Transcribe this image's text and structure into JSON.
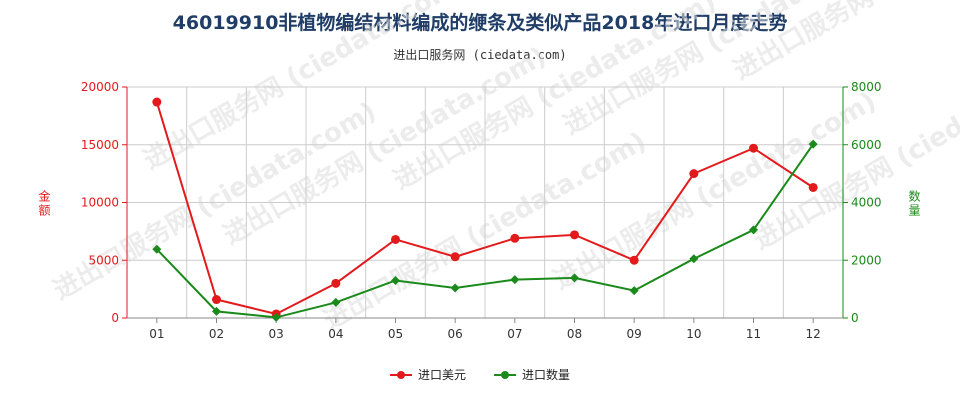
{
  "header": {
    "title": "46019910非植物编结材料编成的缏条及类似产品2018年进口月度走势",
    "subtitle": "进出口服务网 (ciedata.com)"
  },
  "watermark": "进出口服务网 (ciedata.com)",
  "colors": {
    "left_axis": "#e31a1c",
    "right_axis": "#1a8a1a",
    "grid": "#cccccc",
    "title": "#1f3d66"
  },
  "chart_data": {
    "type": "line",
    "title": "46019910非植物编结材料编成的缏条及类似产品2018年进口月度走势",
    "categories": [
      "01",
      "02",
      "03",
      "04",
      "05",
      "06",
      "07",
      "08",
      "09",
      "10",
      "11",
      "12"
    ],
    "ylabel": "金额",
    "y2label": "数量",
    "ylim": [
      0,
      20000
    ],
    "y2lim": [
      0,
      8000
    ],
    "yticks": [
      "0",
      "5000",
      "10000",
      "15000",
      "20000"
    ],
    "y2ticks": [
      "0",
      "2000",
      "4000",
      "6000",
      "8000"
    ],
    "grid": true,
    "legend_position": "bottom-center",
    "series": [
      {
        "name": "进口美元",
        "axis": "left",
        "color": "#e31a1c",
        "values": [
          18700,
          1600,
          350,
          3000,
          6800,
          5300,
          6900,
          7200,
          5000,
          12500,
          14700,
          11300
        ]
      },
      {
        "name": "进口数量",
        "axis": "right",
        "color": "#1a8a1a",
        "values": [
          2380,
          230,
          20,
          540,
          1300,
          1040,
          1330,
          1390,
          950,
          2050,
          3050,
          6020
        ]
      }
    ]
  }
}
